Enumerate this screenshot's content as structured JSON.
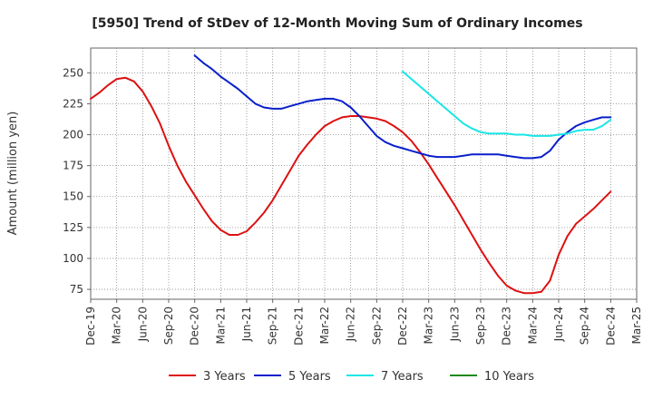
{
  "chart_data": {
    "type": "line",
    "title": "[5950]  Trend of StDev of 12-Month Moving Sum of Ordinary Incomes",
    "xlabel": "",
    "ylabel": "Amount (million yen)",
    "ylim": [
      67,
      270
    ],
    "yticks": [
      75,
      100,
      125,
      150,
      175,
      200,
      225,
      250
    ],
    "grid": true,
    "legend_position": "bottom",
    "x_tick_labels": [
      "Dec-19",
      "Mar-20",
      "Jun-20",
      "Sep-20",
      "Dec-20",
      "Mar-21",
      "Jun-21",
      "Sep-21",
      "Dec-21",
      "Mar-22",
      "Jun-22",
      "Sep-22",
      "Dec-22",
      "Mar-23",
      "Jun-23",
      "Sep-23",
      "Dec-23",
      "Mar-24",
      "Jun-24",
      "Sep-24",
      "Dec-24",
      "Mar-25"
    ],
    "x_unit": "months since Dec-19",
    "series": [
      {
        "name": "3 Years",
        "color": "#dd1111",
        "points": [
          [
            0,
            229
          ],
          [
            1,
            234
          ],
          [
            2,
            240
          ],
          [
            3,
            245
          ],
          [
            4,
            246
          ],
          [
            5,
            243
          ],
          [
            6,
            235
          ],
          [
            7,
            223
          ],
          [
            8,
            209
          ],
          [
            9,
            191
          ],
          [
            10,
            175
          ],
          [
            11,
            162
          ],
          [
            12,
            151
          ],
          [
            13,
            140
          ],
          [
            14,
            130
          ],
          [
            15,
            123
          ],
          [
            16,
            119
          ],
          [
            17,
            119
          ],
          [
            18,
            122
          ],
          [
            19,
            129
          ],
          [
            20,
            137
          ],
          [
            21,
            147
          ],
          [
            22,
            159
          ],
          [
            23,
            171
          ],
          [
            24,
            183
          ],
          [
            25,
            192
          ],
          [
            26,
            200
          ],
          [
            27,
            207
          ],
          [
            28,
            211
          ],
          [
            29,
            214
          ],
          [
            30,
            215
          ],
          [
            31,
            215
          ],
          [
            32,
            214
          ],
          [
            33,
            213
          ],
          [
            34,
            211
          ],
          [
            35,
            207
          ],
          [
            36,
            202
          ],
          [
            37,
            195
          ],
          [
            38,
            186
          ],
          [
            39,
            176
          ],
          [
            40,
            165
          ],
          [
            41,
            154
          ],
          [
            42,
            143
          ],
          [
            43,
            131
          ],
          [
            44,
            119
          ],
          [
            45,
            107
          ],
          [
            46,
            96
          ],
          [
            47,
            86
          ],
          [
            48,
            78
          ],
          [
            49,
            74
          ],
          [
            50,
            72
          ],
          [
            51,
            72
          ],
          [
            52,
            73
          ],
          [
            53,
            82
          ],
          [
            54,
            103
          ],
          [
            55,
            118
          ],
          [
            56,
            128
          ],
          [
            57,
            134
          ],
          [
            58,
            140
          ],
          [
            59,
            147
          ],
          [
            60,
            154
          ]
        ]
      },
      {
        "name": "5 Years",
        "color": "#0a1fcc",
        "points": [
          [
            12,
            264
          ],
          [
            13,
            258
          ],
          [
            14,
            253
          ],
          [
            15,
            247
          ],
          [
            16,
            242
          ],
          [
            17,
            237
          ],
          [
            18,
            231
          ],
          [
            19,
            225
          ],
          [
            20,
            222
          ],
          [
            21,
            221
          ],
          [
            22,
            221
          ],
          [
            23,
            223
          ],
          [
            24,
            225
          ],
          [
            25,
            227
          ],
          [
            26,
            228
          ],
          [
            27,
            229
          ],
          [
            28,
            229
          ],
          [
            29,
            227
          ],
          [
            30,
            222
          ],
          [
            31,
            215
          ],
          [
            32,
            207
          ],
          [
            33,
            199
          ],
          [
            34,
            194
          ],
          [
            35,
            191
          ],
          [
            36,
            189
          ],
          [
            37,
            187
          ],
          [
            38,
            185
          ],
          [
            39,
            183
          ],
          [
            40,
            182
          ],
          [
            41,
            182
          ],
          [
            42,
            182
          ],
          [
            43,
            183
          ],
          [
            44,
            184
          ],
          [
            45,
            184
          ],
          [
            46,
            184
          ],
          [
            47,
            184
          ],
          [
            48,
            183
          ],
          [
            49,
            182
          ],
          [
            50,
            181
          ],
          [
            51,
            181
          ],
          [
            52,
            182
          ],
          [
            53,
            187
          ],
          [
            54,
            196
          ],
          [
            55,
            202
          ],
          [
            56,
            207
          ],
          [
            57,
            210
          ],
          [
            58,
            212
          ],
          [
            59,
            214
          ],
          [
            60,
            214
          ]
        ]
      },
      {
        "name": "7 Years",
        "color": "#19e6e6",
        "points": [
          [
            36,
            251
          ],
          [
            37,
            245
          ],
          [
            38,
            239
          ],
          [
            39,
            233
          ],
          [
            40,
            227
          ],
          [
            41,
            221
          ],
          [
            42,
            215
          ],
          [
            43,
            209
          ],
          [
            44,
            205
          ],
          [
            45,
            202
          ],
          [
            46,
            201
          ],
          [
            47,
            201
          ],
          [
            48,
            201
          ],
          [
            49,
            200
          ],
          [
            50,
            200
          ],
          [
            51,
            199
          ],
          [
            52,
            199
          ],
          [
            53,
            199
          ],
          [
            54,
            200
          ],
          [
            55,
            201
          ],
          [
            56,
            203
          ],
          [
            57,
            204
          ],
          [
            58,
            204
          ],
          [
            59,
            207
          ],
          [
            60,
            212
          ]
        ]
      },
      {
        "name": "10 Years",
        "color": "#1a8a1a",
        "points": []
      }
    ]
  }
}
